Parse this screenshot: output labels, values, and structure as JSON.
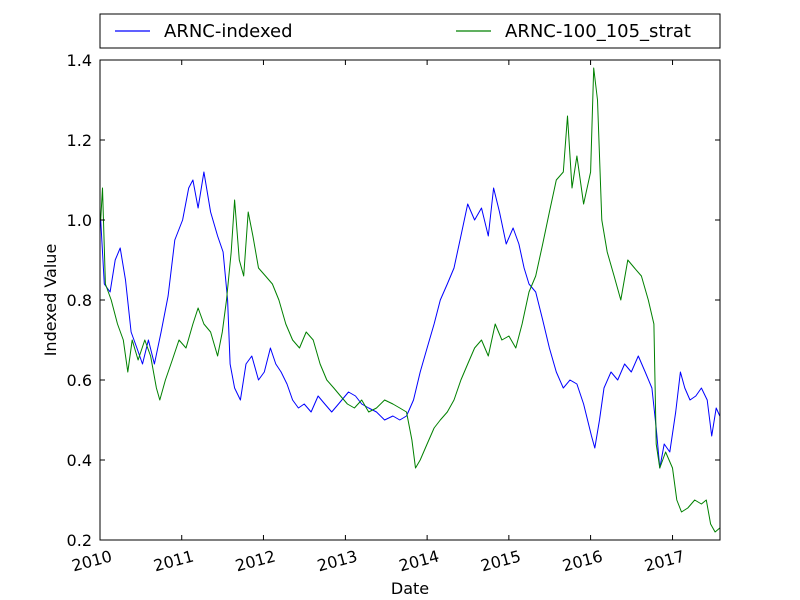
{
  "chart_data": {
    "type": "line",
    "title": "",
    "xlabel": "Date",
    "ylabel": "Indexed Value",
    "xlim": [
      "2010-01-01",
      "2017-08-01"
    ],
    "ylim": [
      0.2,
      1.4
    ],
    "x_ticks": [
      "2010",
      "2011",
      "2012",
      "2013",
      "2014",
      "2015",
      "2016",
      "2017"
    ],
    "y_ticks": [
      "0.2",
      "0.4",
      "0.6",
      "0.8",
      "1.0",
      "1.2",
      "1.4"
    ],
    "grid": false,
    "legend_position": "top, above plot, two columns",
    "series": [
      {
        "name": "ARNC-indexed",
        "color": "#0000ff",
        "points": [
          [
            "2010-01-04",
            1.0
          ],
          [
            "2010-01-20",
            0.84
          ],
          [
            "2010-02-15",
            0.82
          ],
          [
            "2010-03-10",
            0.9
          ],
          [
            "2010-04-01",
            0.93
          ],
          [
            "2010-04-25",
            0.85
          ],
          [
            "2010-05-20",
            0.72
          ],
          [
            "2010-06-15",
            0.68
          ],
          [
            "2010-07-10",
            0.64
          ],
          [
            "2010-08-05",
            0.7
          ],
          [
            "2010-09-01",
            0.64
          ],
          [
            "2010-10-01",
            0.72
          ],
          [
            "2010-11-01",
            0.81
          ],
          [
            "2010-12-01",
            0.95
          ],
          [
            "2011-01-05",
            1.0
          ],
          [
            "2011-02-01",
            1.08
          ],
          [
            "2011-02-20",
            1.1
          ],
          [
            "2011-03-15",
            1.03
          ],
          [
            "2011-04-10",
            1.12
          ],
          [
            "2011-05-10",
            1.02
          ],
          [
            "2011-06-10",
            0.96
          ],
          [
            "2011-07-05",
            0.92
          ],
          [
            "2011-07-25",
            0.8
          ],
          [
            "2011-08-05",
            0.64
          ],
          [
            "2011-08-25",
            0.58
          ],
          [
            "2011-09-20",
            0.55
          ],
          [
            "2011-10-15",
            0.64
          ],
          [
            "2011-11-10",
            0.66
          ],
          [
            "2011-12-10",
            0.6
          ],
          [
            "2012-01-05",
            0.62
          ],
          [
            "2012-02-01",
            0.68
          ],
          [
            "2012-02-25",
            0.64
          ],
          [
            "2012-03-20",
            0.62
          ],
          [
            "2012-04-15",
            0.59
          ],
          [
            "2012-05-10",
            0.55
          ],
          [
            "2012-06-05",
            0.53
          ],
          [
            "2012-07-01",
            0.54
          ],
          [
            "2012-08-01",
            0.52
          ],
          [
            "2012-09-01",
            0.56
          ],
          [
            "2012-10-01",
            0.54
          ],
          [
            "2012-11-01",
            0.52
          ],
          [
            "2012-12-01",
            0.54
          ],
          [
            "2013-01-15",
            0.57
          ],
          [
            "2013-02-15",
            0.56
          ],
          [
            "2013-03-15",
            0.54
          ],
          [
            "2013-04-15",
            0.53
          ],
          [
            "2013-05-20",
            0.52
          ],
          [
            "2013-06-25",
            0.5
          ],
          [
            "2013-08-01",
            0.51
          ],
          [
            "2013-09-01",
            0.5
          ],
          [
            "2013-10-01",
            0.51
          ],
          [
            "2013-11-01",
            0.55
          ],
          [
            "2013-12-01",
            0.62
          ],
          [
            "2014-01-01",
            0.68
          ],
          [
            "2014-02-01",
            0.74
          ],
          [
            "2014-03-01",
            0.8
          ],
          [
            "2014-04-01",
            0.84
          ],
          [
            "2014-05-01",
            0.88
          ],
          [
            "2014-06-01",
            0.96
          ],
          [
            "2014-07-01",
            1.04
          ],
          [
            "2014-08-01",
            1.0
          ],
          [
            "2014-09-01",
            1.03
          ],
          [
            "2014-10-01",
            0.96
          ],
          [
            "2014-10-25",
            1.08
          ],
          [
            "2014-11-20",
            1.02
          ],
          [
            "2014-12-20",
            0.94
          ],
          [
            "2015-01-20",
            0.98
          ],
          [
            "2015-02-15",
            0.94
          ],
          [
            "2015-03-10",
            0.88
          ],
          [
            "2015-04-01",
            0.84
          ],
          [
            "2015-05-01",
            0.82
          ],
          [
            "2015-06-01",
            0.75
          ],
          [
            "2015-07-01",
            0.68
          ],
          [
            "2015-08-01",
            0.62
          ],
          [
            "2015-09-01",
            0.58
          ],
          [
            "2015-10-01",
            0.6
          ],
          [
            "2015-11-01",
            0.59
          ],
          [
            "2015-12-01",
            0.54
          ],
          [
            "2016-01-05",
            0.46
          ],
          [
            "2016-01-20",
            0.43
          ],
          [
            "2016-02-10",
            0.5
          ],
          [
            "2016-03-01",
            0.58
          ],
          [
            "2016-04-01",
            0.62
          ],
          [
            "2016-05-01",
            0.6
          ],
          [
            "2016-06-01",
            0.64
          ],
          [
            "2016-07-01",
            0.62
          ],
          [
            "2016-08-01",
            0.66
          ],
          [
            "2016-09-01",
            0.62
          ],
          [
            "2016-10-01",
            0.58
          ],
          [
            "2016-10-20",
            0.48
          ],
          [
            "2016-11-05",
            0.38
          ],
          [
            "2016-11-25",
            0.44
          ],
          [
            "2016-12-20",
            0.42
          ],
          [
            "2017-01-15",
            0.52
          ],
          [
            "2017-02-05",
            0.62
          ],
          [
            "2017-02-25",
            0.58
          ],
          [
            "2017-03-20",
            0.55
          ],
          [
            "2017-04-15",
            0.56
          ],
          [
            "2017-05-10",
            0.58
          ],
          [
            "2017-06-05",
            0.55
          ],
          [
            "2017-06-25",
            0.46
          ],
          [
            "2017-07-15",
            0.53
          ],
          [
            "2017-07-31",
            0.51
          ]
        ]
      },
      {
        "name": "ARNC-100_105_strat",
        "color": "#008000",
        "points": [
          [
            "2010-01-04",
            1.0
          ],
          [
            "2010-01-12",
            1.08
          ],
          [
            "2010-01-25",
            0.84
          ],
          [
            "2010-02-20",
            0.8
          ],
          [
            "2010-03-20",
            0.74
          ],
          [
            "2010-04-15",
            0.7
          ],
          [
            "2010-05-05",
            0.62
          ],
          [
            "2010-05-25",
            0.7
          ],
          [
            "2010-06-20",
            0.65
          ],
          [
            "2010-07-20",
            0.7
          ],
          [
            "2010-08-15",
            0.66
          ],
          [
            "2010-09-10",
            0.58
          ],
          [
            "2010-09-25",
            0.55
          ],
          [
            "2010-10-20",
            0.6
          ],
          [
            "2010-11-20",
            0.65
          ],
          [
            "2010-12-20",
            0.7
          ],
          [
            "2011-01-20",
            0.68
          ],
          [
            "2011-02-20",
            0.74
          ],
          [
            "2011-03-15",
            0.78
          ],
          [
            "2011-04-10",
            0.74
          ],
          [
            "2011-05-10",
            0.72
          ],
          [
            "2011-06-10",
            0.66
          ],
          [
            "2011-07-01",
            0.72
          ],
          [
            "2011-07-20",
            0.8
          ],
          [
            "2011-08-10",
            0.92
          ],
          [
            "2011-08-25",
            1.05
          ],
          [
            "2011-09-15",
            0.9
          ],
          [
            "2011-10-05",
            0.86
          ],
          [
            "2011-10-25",
            1.02
          ],
          [
            "2011-11-15",
            0.96
          ],
          [
            "2011-12-10",
            0.88
          ],
          [
            "2012-01-10",
            0.86
          ],
          [
            "2012-02-10",
            0.84
          ],
          [
            "2012-03-10",
            0.8
          ],
          [
            "2012-04-10",
            0.74
          ],
          [
            "2012-05-10",
            0.7
          ],
          [
            "2012-06-10",
            0.68
          ],
          [
            "2012-07-10",
            0.72
          ],
          [
            "2012-08-10",
            0.7
          ],
          [
            "2012-09-10",
            0.64
          ],
          [
            "2012-10-10",
            0.6
          ],
          [
            "2012-11-10",
            0.58
          ],
          [
            "2012-12-10",
            0.56
          ],
          [
            "2013-01-10",
            0.54
          ],
          [
            "2013-02-10",
            0.53
          ],
          [
            "2013-03-15",
            0.55
          ],
          [
            "2013-04-15",
            0.52
          ],
          [
            "2013-05-20",
            0.53
          ],
          [
            "2013-06-25",
            0.55
          ],
          [
            "2013-08-01",
            0.54
          ],
          [
            "2013-09-01",
            0.53
          ],
          [
            "2013-10-01",
            0.52
          ],
          [
            "2013-10-25",
            0.45
          ],
          [
            "2013-11-10",
            0.38
          ],
          [
            "2013-12-01",
            0.4
          ],
          [
            "2014-01-01",
            0.44
          ],
          [
            "2014-02-01",
            0.48
          ],
          [
            "2014-03-01",
            0.5
          ],
          [
            "2014-04-01",
            0.52
          ],
          [
            "2014-05-01",
            0.55
          ],
          [
            "2014-06-01",
            0.6
          ],
          [
            "2014-07-01",
            0.64
          ],
          [
            "2014-08-01",
            0.68
          ],
          [
            "2014-09-01",
            0.7
          ],
          [
            "2014-10-01",
            0.66
          ],
          [
            "2014-11-01",
            0.74
          ],
          [
            "2014-12-01",
            0.7
          ],
          [
            "2015-01-01",
            0.71
          ],
          [
            "2015-02-01",
            0.68
          ],
          [
            "2015-03-01",
            0.74
          ],
          [
            "2015-04-01",
            0.82
          ],
          [
            "2015-05-01",
            0.86
          ],
          [
            "2015-06-01",
            0.94
          ],
          [
            "2015-07-01",
            1.02
          ],
          [
            "2015-08-01",
            1.1
          ],
          [
            "2015-09-01",
            1.12
          ],
          [
            "2015-09-20",
            1.26
          ],
          [
            "2015-10-10",
            1.08
          ],
          [
            "2015-11-01",
            1.16
          ],
          [
            "2015-12-01",
            1.04
          ],
          [
            "2016-01-01",
            1.12
          ],
          [
            "2016-01-15",
            1.38
          ],
          [
            "2016-02-01",
            1.3
          ],
          [
            "2016-02-20",
            1.0
          ],
          [
            "2016-03-15",
            0.92
          ],
          [
            "2016-04-15",
            0.86
          ],
          [
            "2016-05-15",
            0.8
          ],
          [
            "2016-06-15",
            0.9
          ],
          [
            "2016-07-15",
            0.88
          ],
          [
            "2016-08-15",
            0.86
          ],
          [
            "2016-09-15",
            0.8
          ],
          [
            "2016-10-10",
            0.74
          ],
          [
            "2016-10-20",
            0.44
          ],
          [
            "2016-11-05",
            0.38
          ],
          [
            "2016-12-01",
            0.42
          ],
          [
            "2017-01-01",
            0.38
          ],
          [
            "2017-01-20",
            0.3
          ],
          [
            "2017-02-10",
            0.27
          ],
          [
            "2017-03-10",
            0.28
          ],
          [
            "2017-04-10",
            0.3
          ],
          [
            "2017-05-10",
            0.29
          ],
          [
            "2017-06-01",
            0.3
          ],
          [
            "2017-06-20",
            0.24
          ],
          [
            "2017-07-10",
            0.22
          ],
          [
            "2017-07-31",
            0.23
          ]
        ]
      }
    ]
  }
}
